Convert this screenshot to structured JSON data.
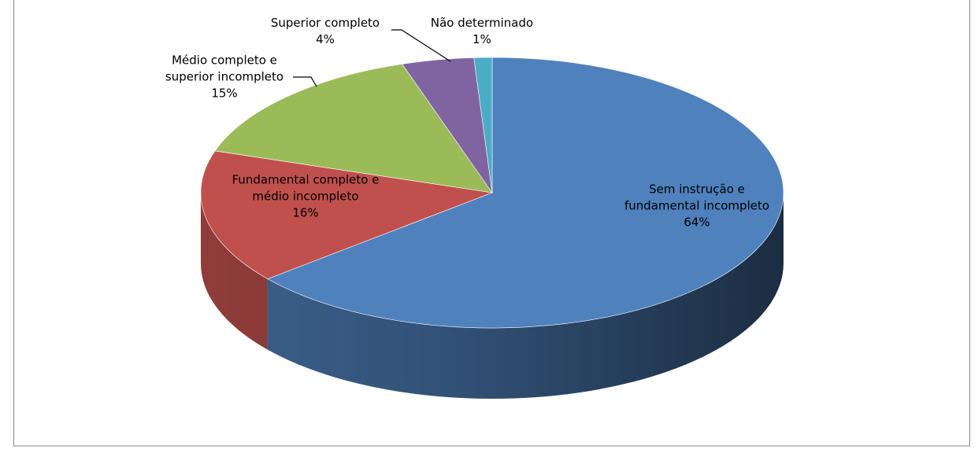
{
  "chart_data": {
    "type": "pie",
    "categories": [
      "Sem instrução e fundamental incompleto",
      "Fundamental completo e médio incompleto",
      "Médio completo e superior incompleto",
      "Superior completo",
      "Não determinado"
    ],
    "values": [
      64,
      16,
      15,
      4,
      1
    ],
    "value_labels": [
      "64%",
      "16%",
      "15%",
      "4%",
      "1%"
    ],
    "colors": [
      "#4f81bd",
      "#c0504d",
      "#9bbb59",
      "#8064a2",
      "#4bacc6"
    ]
  }
}
